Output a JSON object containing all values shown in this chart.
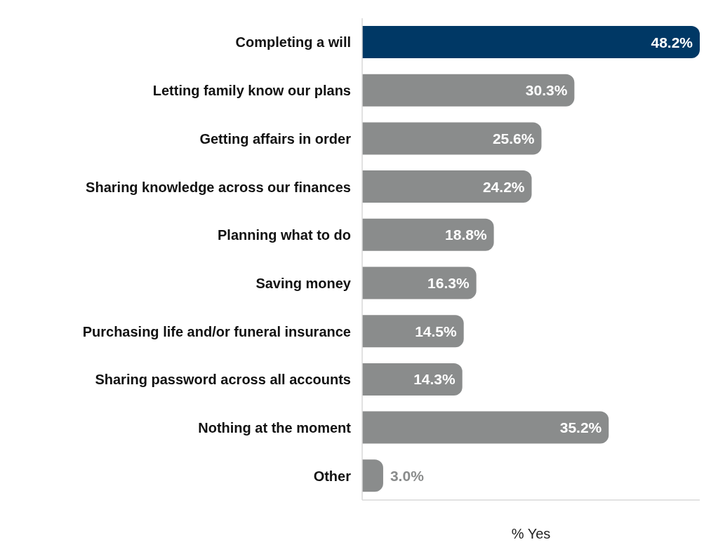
{
  "chart_data": {
    "type": "bar",
    "orientation": "horizontal",
    "xlabel": "% Yes",
    "categories": [
      "Completing a will",
      "Letting family know our plans",
      "Getting affairs in order",
      "Sharing knowledge across our finances",
      "Planning what to do",
      "Saving money",
      "Purchasing life and/or funeral insurance",
      "Sharing password across all accounts",
      "Nothing at the moment",
      "Other"
    ],
    "values": [
      48.2,
      30.3,
      25.6,
      24.2,
      18.8,
      16.3,
      14.5,
      14.3,
      35.2,
      3.0
    ],
    "colors": [
      "#003865",
      "#8a8c8c",
      "#8a8c8c",
      "#8a8c8c",
      "#8a8c8c",
      "#8a8c8c",
      "#8a8c8c",
      "#8a8c8c",
      "#8a8c8c",
      "#8a8c8c"
    ],
    "value_labels": [
      "48.2%",
      "30.3%",
      "25.6%",
      "24.2%",
      "18.8%",
      "16.3%",
      "14.5%",
      "14.3%",
      "35.2%",
      "3.0%"
    ],
    "grid": false
  }
}
